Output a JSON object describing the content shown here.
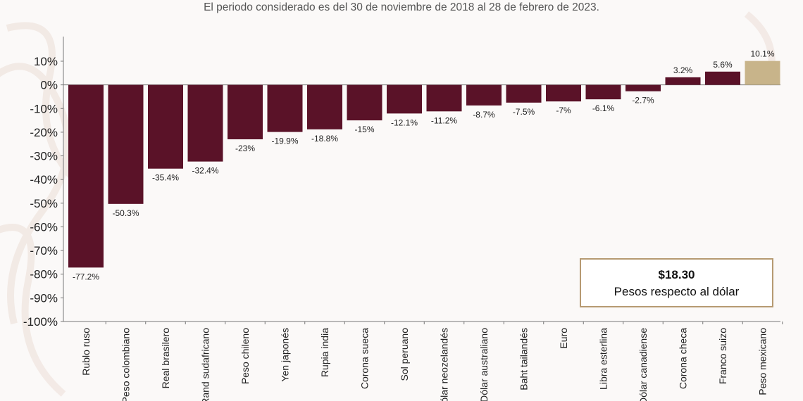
{
  "header": {
    "subtitle": "El periodo considerado es del 30 de noviembre de 2018 al 28 de febrero de 2023."
  },
  "callout": {
    "amount": "$18.30",
    "description": "Pesos respecto al dólar"
  },
  "colors": {
    "bar": "#5a1228",
    "highlight": "#c8b48a",
    "axis": "#777777",
    "callout_border": "#b69a72"
  },
  "chart_data": {
    "type": "bar",
    "categories": [
      "Rublo ruso",
      "Peso colombiano",
      "Real brasilero",
      "Rand sudafricano",
      "Peso chileno",
      "Yen japonés",
      "Rupia india",
      "Corona sueca",
      "Sol peruano",
      "Dólar neozelandés",
      "Dólar australiano",
      "Baht tailandés",
      "Euro",
      "Libra esterlina",
      "Dólar canadiense",
      "Corona checa",
      "Franco suizo",
      "Peso mexicano"
    ],
    "values": [
      -77.2,
      -50.3,
      -35.4,
      -32.4,
      -23,
      -19.9,
      -18.8,
      -15,
      -12.1,
      -11.2,
      -8.7,
      -7.5,
      -7,
      -6.1,
      -2.7,
      3.2,
      5.6,
      10.1
    ],
    "value_labels": [
      "-77.2%",
      "-50.3%",
      "-35.4%",
      "-32.4%",
      "-23%",
      "-19.9%",
      "-18.8%",
      "-15%",
      "-12.1%",
      "-11.2%",
      "-8.7%",
      "-7.5%",
      "-7%",
      "-6.1%",
      "-2.7%",
      "3.2%",
      "5.6%",
      "10.1%"
    ],
    "highlight_category": "Peso mexicano",
    "ylim": [
      -100,
      10
    ],
    "yticks": [
      "10%",
      "0%",
      "-10%",
      "-20%",
      "-30%",
      "-40%",
      "-50%",
      "-60%",
      "-70%",
      "-80%",
      "-90%",
      "-100%"
    ],
    "ytick_values": [
      10,
      0,
      -10,
      -20,
      -30,
      -40,
      -50,
      -60,
      -70,
      -80,
      -90,
      -100
    ],
    "grid": false,
    "legend": "none"
  }
}
